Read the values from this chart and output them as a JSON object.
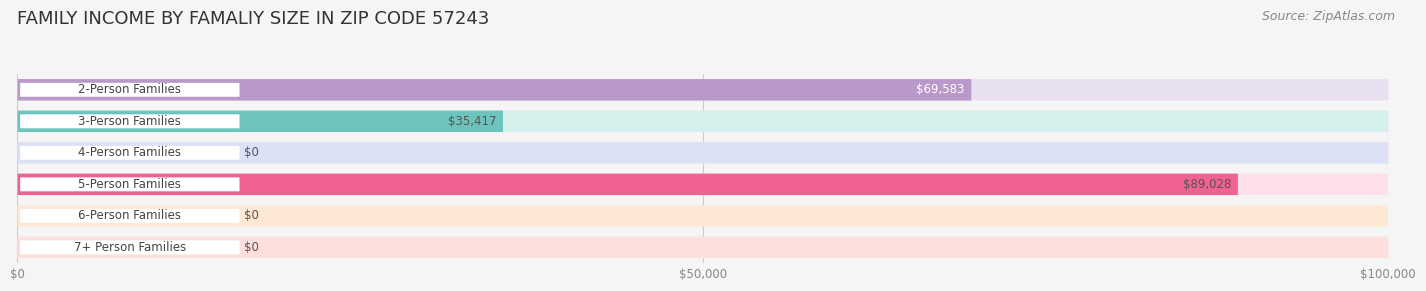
{
  "title": "FAMILY INCOME BY FAMALIY SIZE IN ZIP CODE 57243",
  "source": "Source: ZipAtlas.com",
  "categories": [
    "2-Person Families",
    "3-Person Families",
    "4-Person Families",
    "5-Person Families",
    "6-Person Families",
    "7+ Person Families"
  ],
  "values": [
    69583,
    35417,
    0,
    89028,
    0,
    0
  ],
  "bar_colors": [
    "#b899c9",
    "#6cc4bc",
    "#a9b3e2",
    "#f06292",
    "#f6c9a0",
    "#f6b4b4"
  ],
  "bar_bg_colors": [
    "#e8dff0",
    "#d5efed",
    "#dde1f5",
    "#fde0ec",
    "#fde8d5",
    "#fde0de"
  ],
  "xlim": [
    0,
    100000
  ],
  "xticks": [
    0,
    50000,
    100000
  ],
  "xticklabels": [
    "$0",
    "$50,000",
    "$100,000"
  ],
  "title_fontsize": 13,
  "source_fontsize": 9,
  "label_fontsize": 8.5,
  "value_fontsize": 8.5,
  "background_color": "#f5f5f5",
  "value_color_white": [
    true,
    false,
    false,
    false,
    false,
    false
  ]
}
